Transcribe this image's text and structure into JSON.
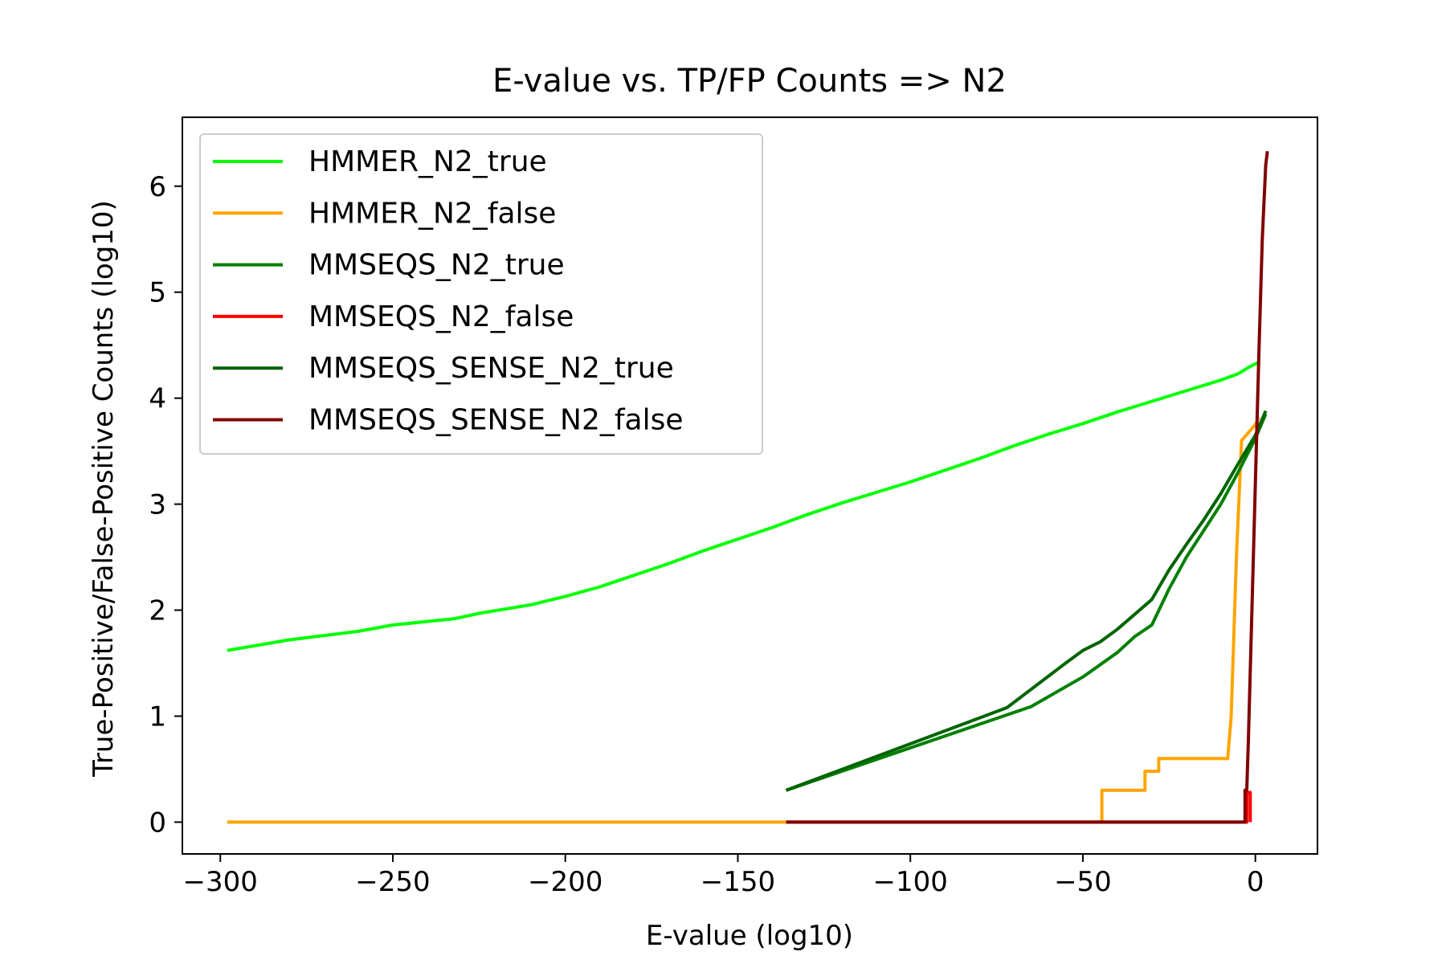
{
  "chart_data": {
    "type": "line",
    "title": "E-value vs. TP/FP Counts => N2",
    "xlabel": "E-value (log10)",
    "ylabel": "True-Positive/False-Positive Counts (log10)",
    "xlim": [
      -311,
      18
    ],
    "ylim": [
      -0.3,
      6.65
    ],
    "xticks": [
      -300,
      -250,
      -200,
      -150,
      -100,
      -50,
      0
    ],
    "xtick_labels": [
      "−300",
      "−250",
      "−200",
      "−150",
      "−100",
      "−50",
      "0"
    ],
    "yticks": [
      0,
      1,
      2,
      3,
      4,
      5,
      6
    ],
    "ytick_labels": [
      "0",
      "1",
      "2",
      "3",
      "4",
      "5",
      "6"
    ],
    "grid": false,
    "legend_position": "upper-left",
    "series": [
      {
        "name": "HMMER_N2_true",
        "color": "#00ff00",
        "x": [
          -298,
          -280,
          -260,
          -250,
          -232,
          -225,
          -210,
          -200,
          -190,
          -180,
          -170,
          -160,
          -150,
          -140,
          -130,
          -120,
          -110,
          -100,
          -90,
          -80,
          -70,
          -60,
          -50,
          -40,
          -30,
          -20,
          -10,
          -5,
          -2,
          1
        ],
        "y": [
          1.62,
          1.72,
          1.8,
          1.86,
          1.92,
          1.97,
          2.05,
          2.13,
          2.22,
          2.33,
          2.44,
          2.56,
          2.67,
          2.78,
          2.9,
          3.01,
          3.11,
          3.21,
          3.32,
          3.43,
          3.55,
          3.66,
          3.76,
          3.87,
          3.97,
          4.07,
          4.17,
          4.23,
          4.29,
          4.34
        ]
      },
      {
        "name": "HMMER_N2_false",
        "color": "#ffa500",
        "x": [
          -298,
          -44.5,
          -44.5,
          -32,
          -32,
          -28,
          -28,
          -8,
          -7,
          -5.5,
          -4,
          0,
          1
        ],
        "y": [
          0,
          0,
          0.3,
          0.3,
          0.48,
          0.48,
          0.6,
          0.6,
          1.0,
          2.5,
          3.6,
          3.75,
          3.82
        ]
      },
      {
        "name": "MMSEQS_N2_true",
        "color": "#008000",
        "x": [
          -136,
          -65,
          -50,
          -40,
          -35,
          -30,
          -25,
          -20,
          -15,
          -10,
          -5,
          0,
          3
        ],
        "y": [
          0.3,
          1.09,
          1.37,
          1.6,
          1.75,
          1.86,
          2.2,
          2.5,
          2.75,
          3.0,
          3.3,
          3.62,
          3.85
        ]
      },
      {
        "name": "MMSEQS_N2_false",
        "color": "#ff0000",
        "x": [
          -136,
          -2.5,
          -2.5,
          -1.5,
          -1.5
        ],
        "y": [
          0,
          0,
          0.28,
          0.28,
          0
        ]
      },
      {
        "name": "MMSEQS_SENSE_N2_true",
        "color": "#006400",
        "x": [
          -136,
          -72,
          -55,
          -50,
          -45,
          -40,
          -35,
          -30,
          -25,
          -20,
          -15,
          -10,
          -5,
          0,
          3
        ],
        "y": [
          0.3,
          1.08,
          1.5,
          1.62,
          1.7,
          1.82,
          1.96,
          2.1,
          2.38,
          2.62,
          2.85,
          3.1,
          3.38,
          3.65,
          3.88
        ]
      },
      {
        "name": "MMSEQS_SENSE_N2_false",
        "color": "#800000",
        "x": [
          -136,
          -3,
          -3,
          -2.5,
          -2,
          -1,
          0,
          1,
          2,
          3,
          3.5
        ],
        "y": [
          0,
          0,
          0.3,
          0.3,
          0.8,
          2.0,
          3.2,
          4.4,
          5.5,
          6.2,
          6.33
        ]
      }
    ]
  }
}
